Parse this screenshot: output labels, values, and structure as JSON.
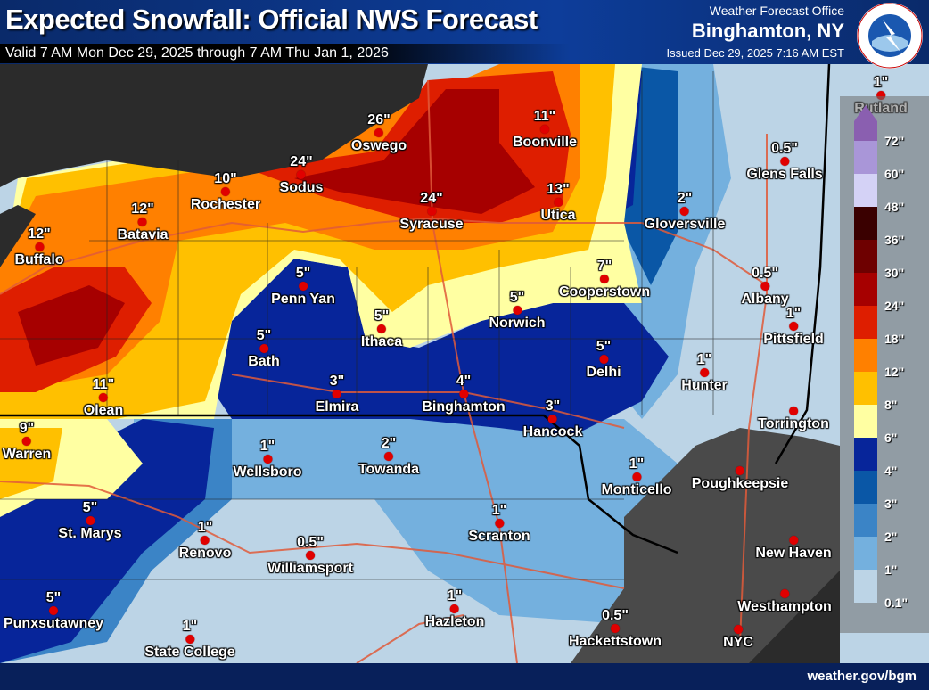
{
  "header": {
    "title": "Expected Snowfall: Official NWS Forecast",
    "valid": "Valid 7 AM Mon Dec 29, 2025 through 7 AM Thu Jan 1, 2026",
    "office_label": "Weather Forecast Office",
    "office": "Binghamton, NY",
    "issued": "Issued Dec 29, 2025 7:16 AM EST",
    "logo_text": "NATIONAL WEATHER SERVICE"
  },
  "footer": {
    "url": "weather.gov/bgm"
  },
  "legend": {
    "labels": [
      "72\"",
      "60\"",
      "48\"",
      "36\"",
      "30\"",
      "24\"",
      "18\"",
      "12\"",
      "8\"",
      "6\"",
      "4\"",
      "3\"",
      "2\"",
      "1\"",
      "0.1\""
    ],
    "colors": [
      "#8a5fb0",
      "#a996d8",
      "#d4d2f6",
      "#3a0000",
      "#6e0000",
      "#a60000",
      "#de1e00",
      "#ff8000",
      "#ffc000",
      "#ffffa2",
      "#07259a",
      "#0a57a6",
      "#3b84c6",
      "#74b0de",
      "#bcd4e6"
    ]
  },
  "cities": [
    {
      "name": "Oswego",
      "value": "26\""
    },
    {
      "name": "Boonville",
      "value": "11\""
    },
    {
      "name": "Sodus",
      "value": "24\""
    },
    {
      "name": "Rochester",
      "value": "10\""
    },
    {
      "name": "Syracuse",
      "value": "24\""
    },
    {
      "name": "Utica",
      "value": "13\""
    },
    {
      "name": "Batavia",
      "value": "12\""
    },
    {
      "name": "Buffalo",
      "value": "12\""
    },
    {
      "name": "Gloversville",
      "value": "2\""
    },
    {
      "name": "Glens Falls",
      "value": "0.5\""
    },
    {
      "name": "Rutland",
      "value": "1\""
    },
    {
      "name": "Albany",
      "value": "0.5\""
    },
    {
      "name": "Penn Yan",
      "value": "5\""
    },
    {
      "name": "Norwich",
      "value": "5\""
    },
    {
      "name": "Cooperstown",
      "value": "7\""
    },
    {
      "name": "Ithaca",
      "value": "5\""
    },
    {
      "name": "Bath",
      "value": "5\""
    },
    {
      "name": "Pittsfield",
      "value": "1\""
    },
    {
      "name": "Delhi",
      "value": "5\""
    },
    {
      "name": "Hunter",
      "value": "1\""
    },
    {
      "name": "Olean",
      "value": "11\""
    },
    {
      "name": "Elmira",
      "value": "3\""
    },
    {
      "name": "Binghamton",
      "value": "4\""
    },
    {
      "name": "Hancock",
      "value": "3\""
    },
    {
      "name": "Warren",
      "value": "9\""
    },
    {
      "name": "Wellsboro",
      "value": "1\""
    },
    {
      "name": "Towanda",
      "value": "2\""
    },
    {
      "name": "Monticello",
      "value": "1\""
    },
    {
      "name": "Poughkeepsie",
      "value": ""
    },
    {
      "name": "Torrington",
      "value": ""
    },
    {
      "name": "St. Marys",
      "value": "5\""
    },
    {
      "name": "Renovo",
      "value": "1\""
    },
    {
      "name": "Scranton",
      "value": "1\""
    },
    {
      "name": "Williamsport",
      "value": "0.5\""
    },
    {
      "name": "New Haven",
      "value": ""
    },
    {
      "name": "Hazleton",
      "value": "1\""
    },
    {
      "name": "Hackettstown",
      "value": "0.5\""
    },
    {
      "name": "State College",
      "value": "1\""
    },
    {
      "name": "Punxsutawney",
      "value": "5\""
    },
    {
      "name": "NYC",
      "value": ""
    },
    {
      "name": "Westhampton",
      "value": ""
    }
  ]
}
